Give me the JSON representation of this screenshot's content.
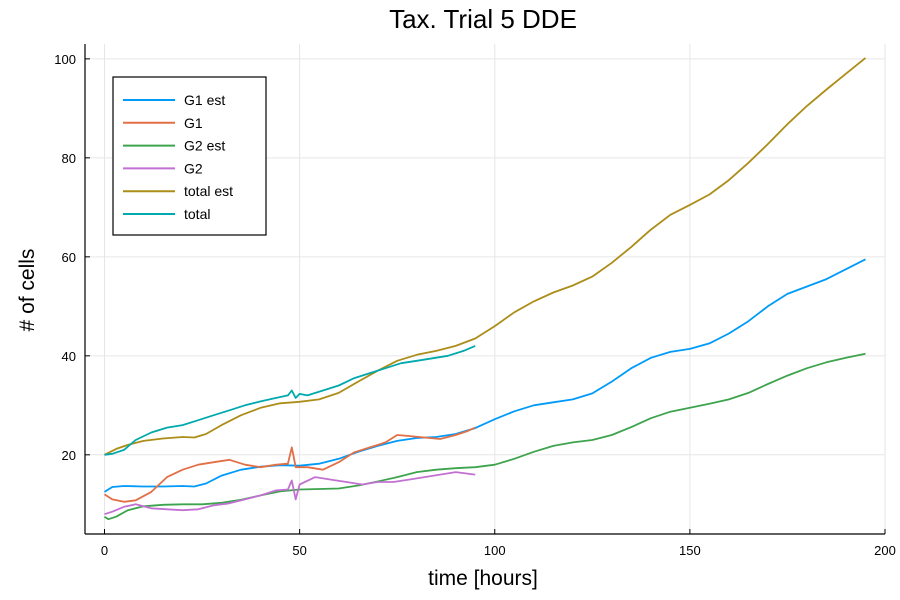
{
  "chart_data": {
    "type": "line",
    "title": "Tax. Trial 5 DDE",
    "xlabel": "time [hours]",
    "ylabel": "# of cells",
    "xlim": [
      -5,
      200
    ],
    "ylim": [
      4,
      103
    ],
    "xticks": [
      0,
      50,
      100,
      150,
      200
    ],
    "yticks": [
      20,
      40,
      60,
      80,
      100
    ],
    "grid": true,
    "legend_position": "top-left",
    "series": [
      {
        "name": "G1 est",
        "color": "#009af9",
        "x": [
          0,
          2,
          5,
          10,
          15,
          20,
          23,
          26,
          30,
          35,
          40,
          45,
          50,
          55,
          60,
          65,
          70,
          75,
          80,
          85,
          90,
          95,
          100,
          105,
          110,
          115,
          120,
          125,
          130,
          135,
          140,
          145,
          150,
          155,
          160,
          165,
          170,
          175,
          180,
          185,
          190,
          195
        ],
        "y": [
          12.5,
          13.5,
          13.7,
          13.6,
          13.6,
          13.7,
          13.6,
          14.2,
          15.8,
          17.0,
          17.6,
          17.9,
          17.8,
          18.2,
          19.2,
          20.6,
          21.8,
          22.8,
          23.4,
          23.6,
          24.2,
          25.4,
          27.2,
          28.8,
          30.0,
          30.6,
          31.2,
          32.4,
          34.8,
          37.5,
          39.6,
          40.8,
          41.4,
          42.5,
          44.5,
          47.0,
          50.0,
          52.5,
          54.0,
          55.5,
          57.5,
          59.5
        ]
      },
      {
        "name": "G1",
        "color": "#e26f46",
        "x": [
          0,
          2,
          5,
          8,
          12,
          16,
          20,
          24,
          28,
          32,
          36,
          40,
          44,
          47,
          48,
          49,
          52,
          56,
          60,
          64,
          68,
          72,
          75,
          78,
          82,
          86,
          90,
          93,
          95
        ],
        "y": [
          12.0,
          11.0,
          10.5,
          10.8,
          12.5,
          15.5,
          17.0,
          18.0,
          18.5,
          19.0,
          18.0,
          17.5,
          18.0,
          18.2,
          21.5,
          17.5,
          17.5,
          17.0,
          18.5,
          20.5,
          21.5,
          22.5,
          24.0,
          23.8,
          23.5,
          23.2,
          24.0,
          24.8,
          25.5
        ]
      },
      {
        "name": "G2 est",
        "color": "#3da44d",
        "x": [
          0,
          1,
          3,
          6,
          10,
          15,
          20,
          25,
          30,
          35,
          40,
          45,
          50,
          55,
          60,
          65,
          70,
          75,
          80,
          85,
          90,
          95,
          100,
          105,
          110,
          115,
          120,
          125,
          130,
          135,
          140,
          145,
          150,
          155,
          160,
          165,
          170,
          175,
          180,
          185,
          190,
          195
        ],
        "y": [
          7.5,
          7.0,
          7.5,
          8.8,
          9.6,
          9.9,
          10.0,
          10.0,
          10.3,
          10.9,
          11.8,
          12.6,
          13.0,
          13.1,
          13.2,
          13.8,
          14.6,
          15.5,
          16.5,
          17.0,
          17.3,
          17.5,
          18.0,
          19.2,
          20.6,
          21.8,
          22.5,
          23.0,
          24.0,
          25.6,
          27.4,
          28.7,
          29.5,
          30.3,
          31.2,
          32.5,
          34.3,
          36.0,
          37.5,
          38.7,
          39.6,
          40.4
        ]
      },
      {
        "name": "G2",
        "color": "#c271d2",
        "x": [
          0,
          2,
          5,
          8,
          12,
          16,
          20,
          24,
          28,
          32,
          36,
          40,
          44,
          47,
          48,
          49,
          50,
          54,
          58,
          62,
          66,
          70,
          74,
          78,
          82,
          86,
          90,
          93,
          95
        ],
        "y": [
          8.0,
          8.5,
          9.5,
          10.0,
          9.2,
          9.0,
          8.8,
          9.0,
          9.8,
          10.2,
          11.0,
          11.8,
          12.8,
          13.0,
          14.8,
          11.0,
          14.0,
          15.5,
          15.0,
          14.5,
          14.0,
          14.5,
          14.5,
          15.0,
          15.5,
          16.0,
          16.5,
          16.2,
          16.0
        ]
      },
      {
        "name": "total est",
        "color": "#ac8d18",
        "x": [
          0,
          3,
          6,
          10,
          15,
          20,
          23,
          26,
          30,
          35,
          40,
          45,
          50,
          55,
          60,
          65,
          70,
          75,
          80,
          85,
          90,
          95,
          100,
          105,
          110,
          115,
          120,
          125,
          130,
          135,
          140,
          145,
          150,
          155,
          160,
          165,
          170,
          175,
          180,
          185,
          190,
          195
        ],
        "y": [
          20.0,
          21.2,
          22.0,
          22.8,
          23.3,
          23.6,
          23.5,
          24.2,
          26.0,
          28.0,
          29.5,
          30.4,
          30.7,
          31.2,
          32.5,
          34.8,
          37.0,
          39.0,
          40.2,
          41.0,
          42.0,
          43.5,
          46.0,
          48.8,
          51.0,
          52.8,
          54.2,
          56.0,
          58.8,
          62.0,
          65.5,
          68.5,
          70.5,
          72.6,
          75.5,
          79.0,
          82.8,
          86.8,
          90.5,
          93.8,
          97.0,
          100.2
        ]
      },
      {
        "name": "total",
        "color": "#00a9ad",
        "x": [
          0,
          2,
          5,
          8,
          12,
          16,
          20,
          24,
          28,
          32,
          36,
          40,
          44,
          47,
          48,
          49,
          50,
          52,
          56,
          60,
          64,
          68,
          72,
          76,
          80,
          84,
          88,
          92,
          95
        ],
        "y": [
          20.0,
          20.2,
          21.0,
          23.0,
          24.5,
          25.5,
          26.0,
          27.0,
          28.0,
          29.0,
          30.0,
          30.8,
          31.5,
          32.0,
          33.0,
          31.5,
          32.3,
          32.0,
          33.0,
          34.0,
          35.5,
          36.5,
          37.5,
          38.5,
          39.0,
          39.5,
          40.0,
          41.0,
          42.0
        ]
      }
    ]
  }
}
